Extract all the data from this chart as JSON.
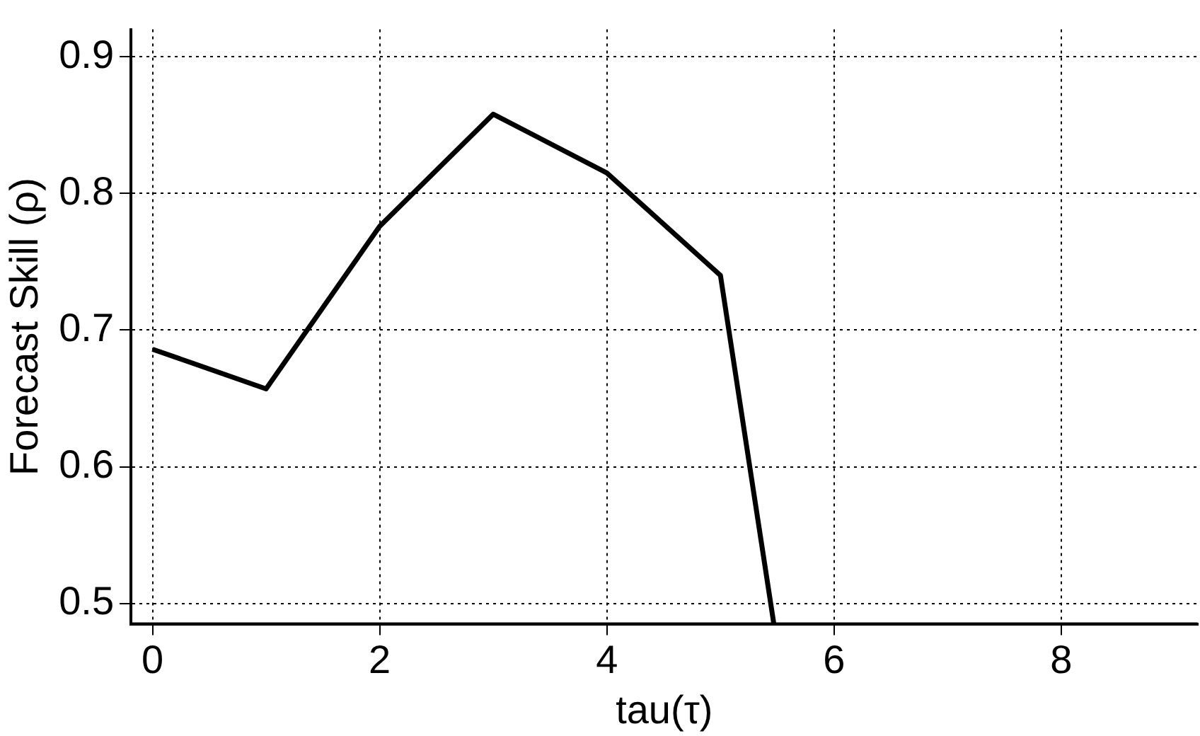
{
  "chart_data": {
    "type": "line",
    "xlabel": "tau(τ)",
    "ylabel": "Forecast Skill (ρ)",
    "x": [
      0,
      1,
      2,
      3,
      4,
      5,
      5.47
    ],
    "series": [
      {
        "color": "#000000",
        "values": [
          0.686,
          0.657,
          0.776,
          0.858,
          0.815,
          0.74,
          0.485
        ]
      }
    ],
    "xlim": [
      -0.19,
      9.2
    ],
    "ylim": [
      0.485,
      0.92
    ],
    "xticks": [
      0,
      2,
      4,
      6,
      8
    ],
    "yticks": [
      0.5,
      0.6,
      0.7,
      0.8,
      0.9
    ],
    "grid": true,
    "marker": "none",
    "line_style": "solid"
  }
}
